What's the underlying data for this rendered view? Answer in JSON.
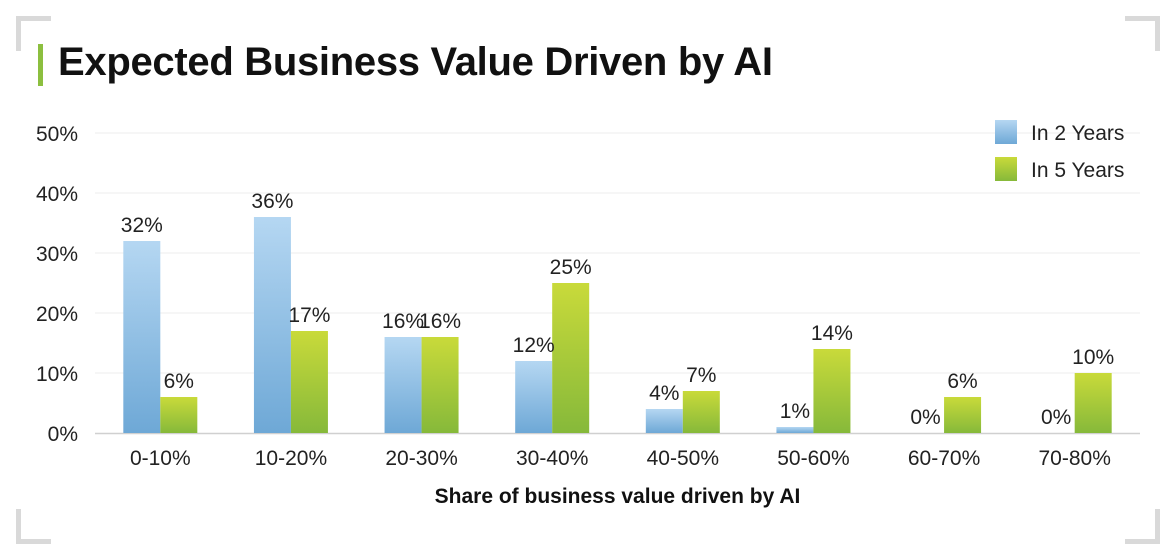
{
  "title": "Expected Business Value Driven by AI",
  "chart_data": {
    "type": "bar",
    "categories": [
      "0-10%",
      "10-20%",
      "20-30%",
      "30-40%",
      "40-50%",
      "50-60%",
      "60-70%",
      "70-80%"
    ],
    "series": [
      {
        "name": "In 2 Years",
        "values": [
          32,
          36,
          16,
          12,
          4,
          1,
          0,
          0
        ],
        "color": "#8ab9e0"
      },
      {
        "name": "In 5 Years",
        "values": [
          6,
          17,
          16,
          25,
          7,
          14,
          6,
          10
        ],
        "color": "#a6c93a"
      }
    ],
    "value_suffix": "%",
    "xlabel": "Share of business value driven by AI",
    "ylabel": "",
    "ylim": [
      0,
      50
    ],
    "yticks": [
      "0%",
      "10%",
      "20%",
      "30%",
      "40%",
      "50%"
    ],
    "grid": true,
    "legend_position": "top-right"
  }
}
